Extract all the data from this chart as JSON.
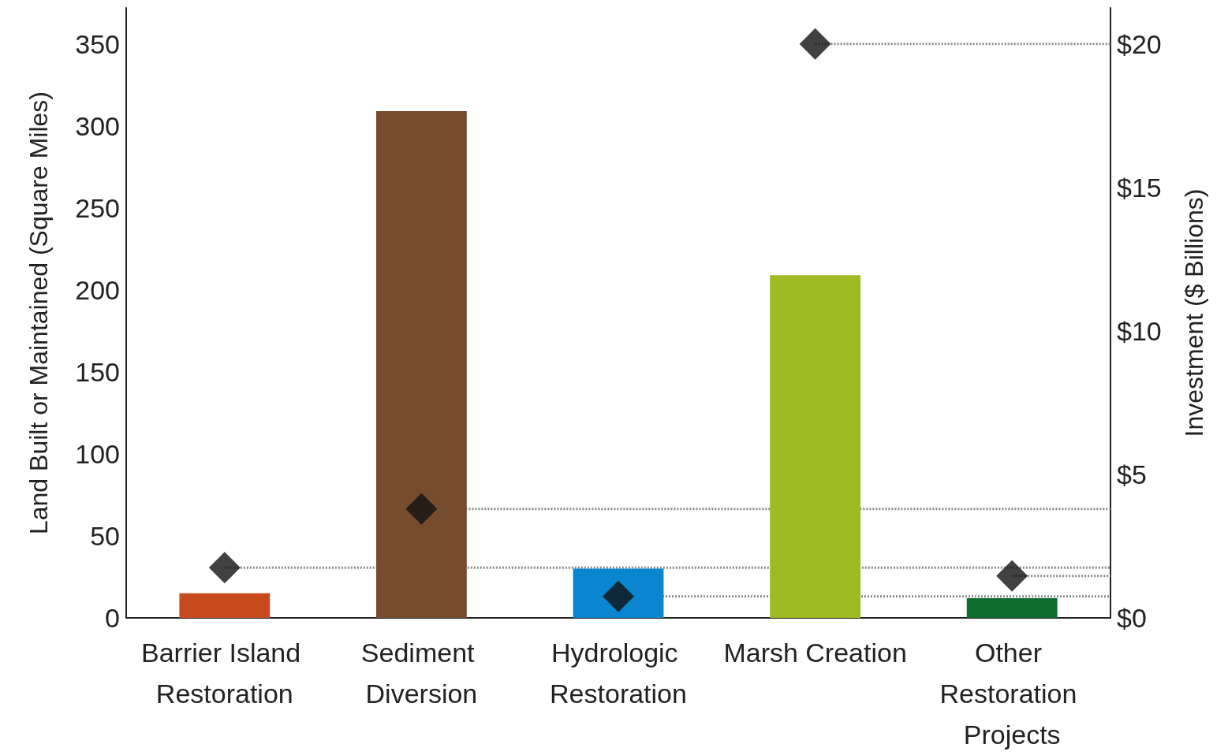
{
  "chart_data": {
    "type": "bar",
    "categories": [
      "Barrier Island Restoration",
      "Sediment Diversion",
      "Hydrologic Restoration",
      "Marsh Creation",
      "Other Restoration Projects"
    ],
    "series": [
      {
        "colors": [
          "#c84b1f",
          "#774b2e",
          "#0a86d0",
          "#9fba23",
          "#0e6d2f"
        ],
        "values": [
          15,
          309,
          30,
          209,
          12
        ]
      },
      {
        "type": "scatter",
        "axis": "y2",
        "color": "#111111",
        "marker": "diamond",
        "values": [
          1.75,
          3.8,
          0.75,
          20,
          1.46
        ]
      }
    ],
    "ylabel": "Land Built or Maintained (Square Miles)",
    "y2label": "Investment ($ Billions)",
    "ylim": [
      0,
      372
    ],
    "yticks": [
      0,
      50,
      100,
      150,
      200,
      250,
      300,
      350
    ],
    "y2lim": [
      0,
      21.26
    ],
    "y2ticks": [
      {
        "value": 0,
        "label": "$0"
      },
      {
        "value": 5,
        "label": "$5"
      },
      {
        "value": 10,
        "label": "$10"
      },
      {
        "value": 15,
        "label": "$15"
      },
      {
        "value": 20,
        "label": "$20"
      }
    ],
    "ref_lines": [
      {
        "axis": "y2",
        "value": 1.75,
        "color": "#8a8a8a",
        "line_style": "dotted"
      },
      {
        "axis": "y2",
        "value": 3.8,
        "color": "#8a8a8a",
        "line_style": "dotted"
      },
      {
        "axis": "y2",
        "value": 0.75,
        "color": "#8a8a8a",
        "line_style": "dotted"
      },
      {
        "axis": "y2",
        "value": 20,
        "color": "#8a8a8a",
        "line_style": "dotted"
      },
      {
        "axis": "y2",
        "value": 1.46,
        "color": "#8a8a8a",
        "line_style": "dotted"
      }
    ],
    "grid": false
  }
}
